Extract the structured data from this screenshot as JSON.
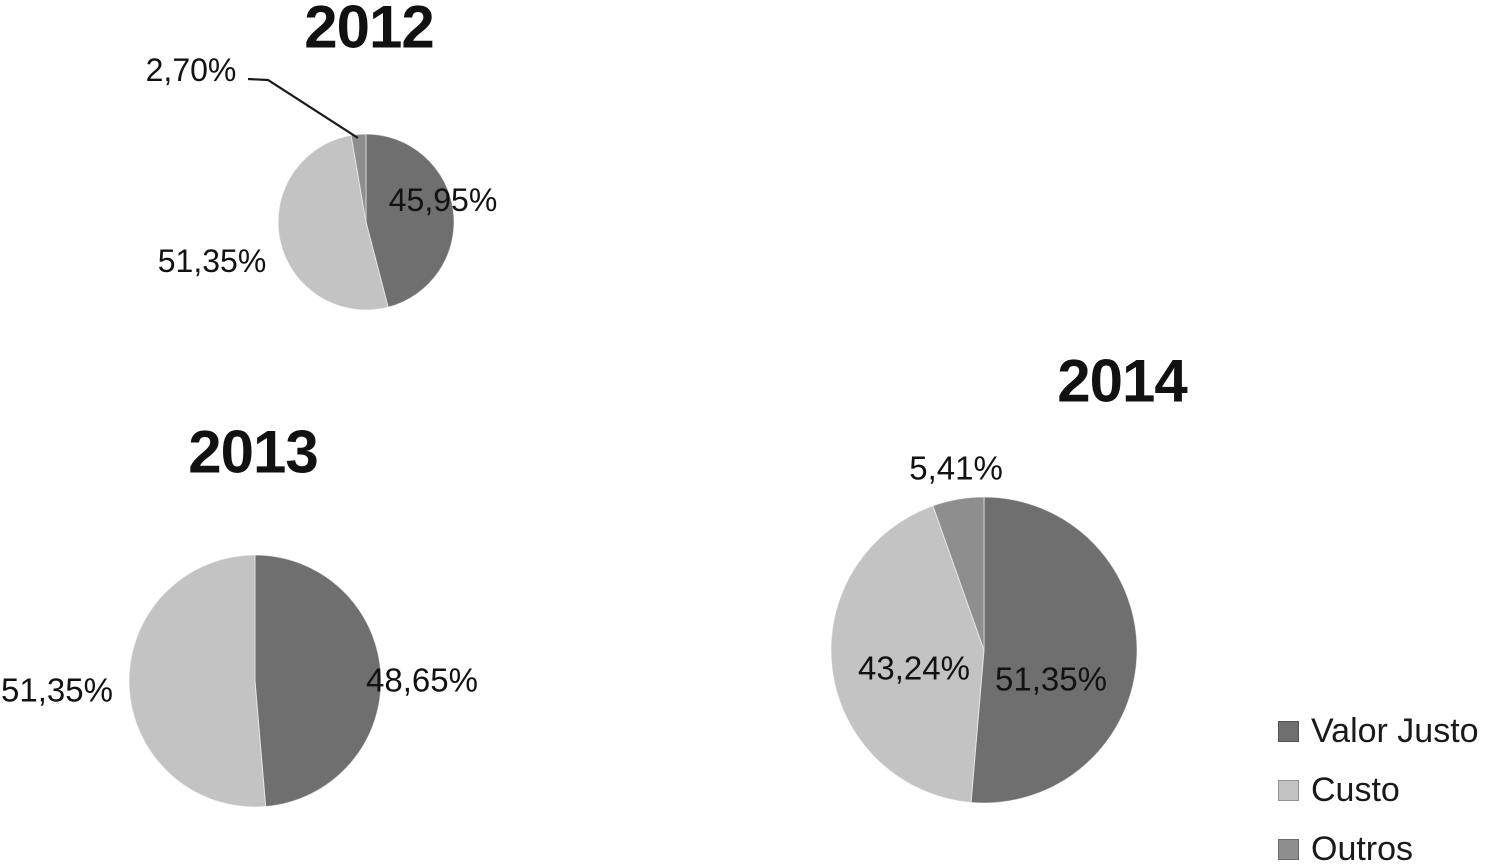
{
  "background_color": "#ffffff",
  "text_color": "#121212",
  "chart_data": [
    {
      "type": "pie",
      "title": "2012",
      "start_angle_deg": 0,
      "direction": "clockwise",
      "slices": [
        {
          "label": "Valor Justo",
          "value": 45.95,
          "display": "45,95%",
          "color": "#6f6f6f"
        },
        {
          "label": "Custo",
          "value": 51.35,
          "display": "51,35%",
          "color": "#c3c3c3"
        },
        {
          "label": "Outros",
          "value": 2.7,
          "display": "2,70%",
          "color": "#8e8e8e",
          "callout": true
        }
      ]
    },
    {
      "type": "pie",
      "title": "2013",
      "start_angle_deg": 0,
      "direction": "clockwise",
      "slices": [
        {
          "label": "Valor Justo",
          "value": 48.65,
          "display": "48,65%",
          "color": "#6f6f6f"
        },
        {
          "label": "Custo",
          "value": 51.35,
          "display": "51,35%",
          "color": "#c3c3c3"
        }
      ]
    },
    {
      "type": "pie",
      "title": "2014",
      "start_angle_deg": 0,
      "direction": "clockwise",
      "slices": [
        {
          "label": "Valor Justo",
          "value": 51.35,
          "display": "51,35%",
          "color": "#6f6f6f"
        },
        {
          "label": "Custo",
          "value": 43.24,
          "display": "43,24%",
          "color": "#c3c3c3"
        },
        {
          "label": "Outros",
          "value": 5.41,
          "display": "5,41%",
          "color": "#8e8e8e"
        }
      ]
    }
  ],
  "legend": {
    "position": "bottom-right",
    "entries": [
      {
        "label": "Valor Justo",
        "color": "#6f6f6f"
      },
      {
        "label": "Custo",
        "color": "#c3c3c3"
      },
      {
        "label": "Outros",
        "color": "#8e8e8e"
      }
    ]
  }
}
